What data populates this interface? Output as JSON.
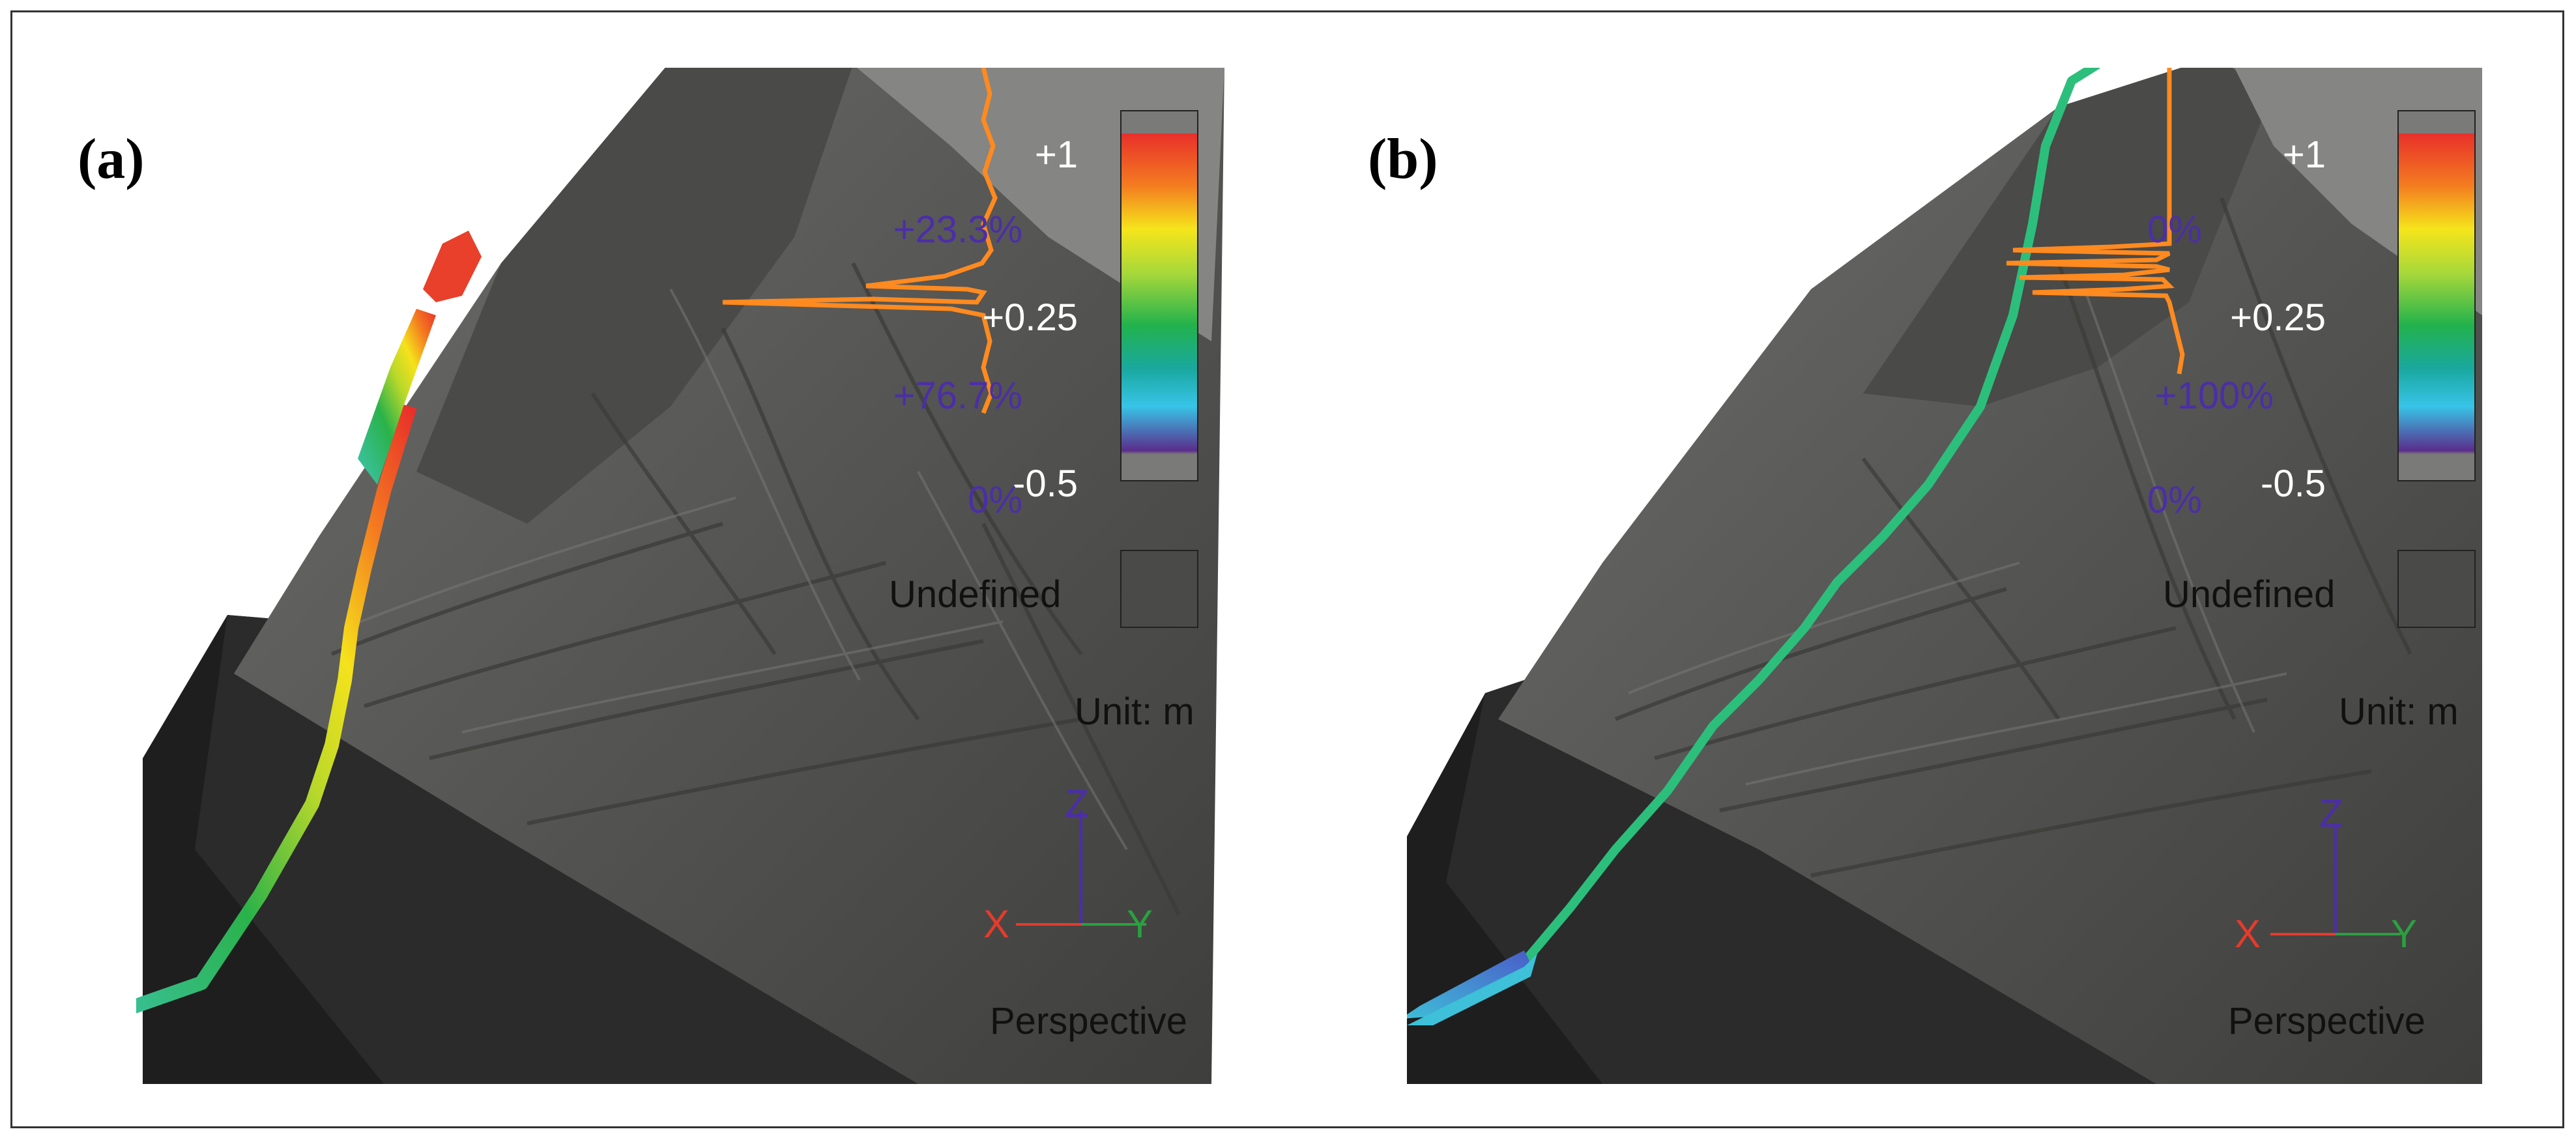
{
  "panels": [
    {
      "label": "(a)",
      "scale": {
        "ticks": [
          "+1",
          "+0.25",
          "-0.5"
        ],
        "percentages": [
          "+23.3%",
          "+76.7%",
          "0%"
        ]
      },
      "undefined_label": "Undefined",
      "unit_label": "Unit: m",
      "axes": {
        "x": "X",
        "y": "Y",
        "z": "Z"
      },
      "view_label": "Perspective"
    },
    {
      "label": "(b)",
      "scale": {
        "ticks": [
          "+1",
          "+0.25",
          "-0.5"
        ],
        "percentages": [
          "0%",
          "+100%",
          "0%"
        ]
      },
      "undefined_label": "Undefined",
      "unit_label": "Unit: m",
      "axes": {
        "x": "X",
        "y": "Y",
        "z": "Z"
      },
      "view_label": "Perspective"
    }
  ],
  "colors": {
    "terrain": "#5c5c5a",
    "background_dark": "#2a2a2a",
    "histogram": "#ff8a1f",
    "tick_text": "#ffffff",
    "percent_text": "#4b2ea8",
    "axis_x": "#e53b2c",
    "axis_y": "#2aa040",
    "axis_z": "#4b2ea8"
  }
}
